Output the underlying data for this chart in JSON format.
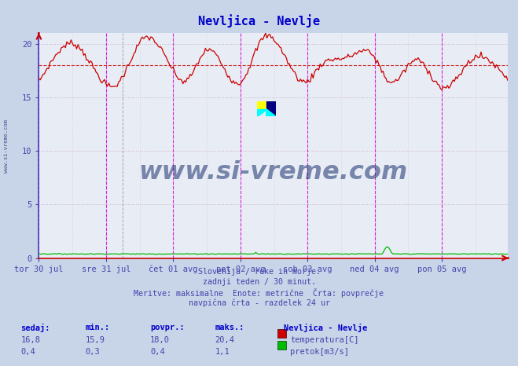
{
  "title": "Nevljica - Nevlje",
  "title_color": "#0000cc",
  "bg_color": "#c8d4e8",
  "plot_bg_color": "#e8ecf4",
  "grid_color": "#c8b4c8",
  "grid_style": "dotted",
  "xlabel_color": "#4444aa",
  "ylim": [
    0,
    21
  ],
  "yticks": [
    0,
    5,
    10,
    15,
    20
  ],
  "n_points": 336,
  "days": 7,
  "pts_per_day": 48,
  "avg_line_value": 18.0,
  "avg_line_color": "#cc2222",
  "temp_color": "#cc0000",
  "flow_color": "#00bb00",
  "flow_scale": 21,
  "flow_max_raw": 1.1,
  "tick_labels": [
    "tor 30 jul",
    "sre 31 jul",
    "čet 01 avg",
    "pet 02 avg",
    "sob 03 avg",
    "ned 04 avg",
    "pon 05 avg"
  ],
  "vline_color": "#dd00dd",
  "vline_style": "--",
  "dashed_vline_color": "#888888",
  "footer_lines": [
    "Slovenija / reke in morje.",
    "zadnji teden / 30 minut.",
    "Meritve: maksimalne  Enote: metrične  Črta: povprečje",
    "navpična črta - razdelek 24 ur"
  ],
  "watermark": "www.si-vreme.com",
  "watermark_color": "#1a3070",
  "legend_title": "Nevljica - Nevlje",
  "legend_items": [
    "temperatura[C]",
    "pretok[m3/s]"
  ],
  "legend_colors": [
    "#cc0000",
    "#00bb00"
  ],
  "table_headers": [
    "sedaj:",
    "min.:",
    "povpr.:",
    "maks.:"
  ],
  "table_row1": [
    "16,8",
    "15,9",
    "18,0",
    "20,4"
  ],
  "table_row2": [
    "0,4",
    "0,3",
    "0,4",
    "1,1"
  ]
}
